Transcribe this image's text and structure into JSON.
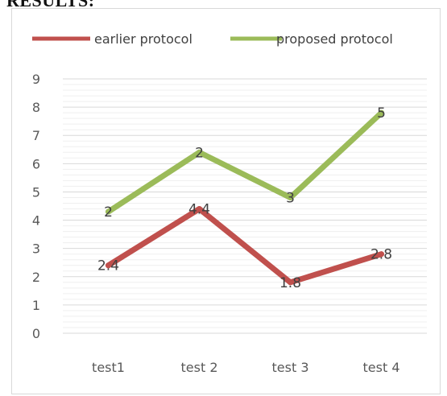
{
  "page": {
    "heading_fragment": "RESULTS:"
  },
  "chart_data": {
    "type": "line",
    "title": "",
    "xlabel": "",
    "ylabel": "",
    "categories": [
      "test1",
      "test 2",
      "test 3",
      "test 4"
    ],
    "ylim": [
      0,
      9
    ],
    "yticks": [
      0,
      1,
      2,
      3,
      4,
      5,
      6,
      7,
      8,
      9
    ],
    "grid": true,
    "legend_position": "top",
    "series": [
      {
        "name": "earlier protocol",
        "color": "#c0504d",
        "values": [
          2.4,
          4.4,
          1.8,
          2.8
        ],
        "data_labels": [
          "2.4",
          "4.4",
          "1.8",
          "2.8"
        ]
      },
      {
        "name": "proposed protocol",
        "color": "#9bbb59",
        "values": [
          4.3,
          6.4,
          4.8,
          7.8
        ],
        "data_labels": [
          "2",
          "2",
          "3",
          "5"
        ]
      }
    ]
  }
}
